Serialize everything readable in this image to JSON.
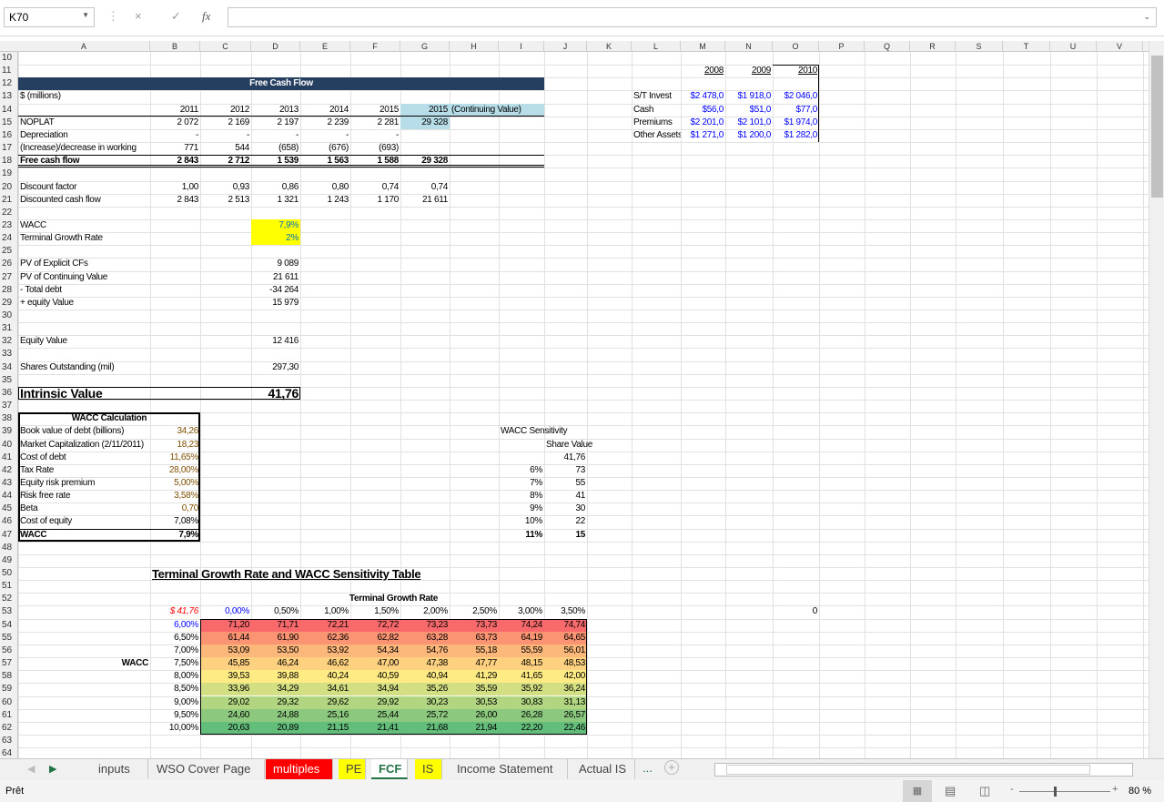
{
  "formula_bar": {
    "name_box": "K70",
    "cancel_icon": "×",
    "enter_icon": "✓",
    "fx_label": "fx",
    "value": ""
  },
  "columns": [
    "A",
    "B",
    "C",
    "D",
    "E",
    "F",
    "G",
    "H",
    "I",
    "J",
    "K",
    "L",
    "M",
    "N",
    "O",
    "P",
    "Q",
    "R",
    "S",
    "T",
    "U",
    "V"
  ],
  "first_row": 10,
  "last_row": 64,
  "cells": {
    "12": {
      "A": "Free Cash Flow"
    },
    "13": {
      "A": "$ (millions)"
    },
    "14": {
      "B": "2011",
      "C": "2012",
      "D": "2013",
      "E": "2014",
      "F": "2015",
      "G": "2015",
      "H": "(Continuing Value)"
    },
    "15": {
      "A": "NOPLAT",
      "B": "2 072",
      "C": "2 169",
      "D": "2 197",
      "E": "2 239",
      "F": "2 281",
      "G": "29 328"
    },
    "16": {
      "A": "Depreciation",
      "B": "-",
      "C": "-",
      "D": "-",
      "E": "-",
      "F": "-"
    },
    "17": {
      "A": "(Increase)/decrease in working",
      "B": "771",
      "C": "544",
      "D": "(658)",
      "E": "(676)",
      "F": "(693)"
    },
    "18": {
      "A": "Free cash flow",
      "B": "2 843",
      "C": "2 712",
      "D": "1 539",
      "E": "1 563",
      "F": "1 588",
      "G": "29 328"
    },
    "20": {
      "A": "Discount factor",
      "B": "1,00",
      "C": "0,93",
      "D": "0,86",
      "E": "0,80",
      "F": "0,74",
      "G": "0,74"
    },
    "21": {
      "A": "Discounted cash flow",
      "B": "2 843",
      "C": "2 513",
      "D": "1 321",
      "E": "1 243",
      "F": "1 170",
      "G": "21 611"
    },
    "23": {
      "A": "WACC",
      "D": "7,9%"
    },
    "24": {
      "A": "Terminal Growth Rate",
      "D": "2%"
    },
    "26": {
      "A": "PV of Explicit CFs",
      "D": "9 089"
    },
    "27": {
      "A": "PV of Continuing Value",
      "D": "21 611"
    },
    "28": {
      "A": "- Total debt",
      "D": "-34 264"
    },
    "29": {
      "A": "+ equity Value",
      "D": "15 979"
    },
    "32": {
      "A": "Equity Value",
      "D": "12 416"
    },
    "34": {
      "A": "Shares Outstanding (mil)",
      "D": "297,30"
    },
    "36": {
      "A": "Intrinsic Value",
      "D": "41,76"
    },
    "38": {
      "A": "WACC Calculation"
    },
    "39": {
      "A": "Book value of debt (billions)",
      "B": "34,26",
      "I": "WACC Sensitivity"
    },
    "40": {
      "A": "Market Capitalization (2/11/2011)",
      "B": "18,23",
      "J": "Share Value"
    },
    "41": {
      "A": "Cost of debt",
      "B": "11,65%",
      "J": "41,76"
    },
    "42": {
      "A": "Tax Rate",
      "B": "28,00%",
      "I": "6%",
      "J": "73"
    },
    "43": {
      "A": "Equity risk premium",
      "B": "5,00%",
      "I": "7%",
      "J": "55"
    },
    "44": {
      "A": "Risk free rate",
      "B": "3,58%",
      "I": "8%",
      "J": "41"
    },
    "45": {
      "A": "Beta",
      "B": "0,70",
      "I": "9%",
      "J": "30"
    },
    "46": {
      "A": "Cost of equity",
      "B": "7,08%",
      "I": "10%",
      "J": "22"
    },
    "47": {
      "A": "WACC",
      "B": "7,9%",
      "I": "11%",
      "J": "15"
    },
    "50": {
      "B": "Terminal Growth Rate and WACC Sensitivity Table"
    },
    "52": {
      "C": "Terminal Growth Rate"
    },
    "53": {
      "B": "$  41,76",
      "C": "0,00%",
      "D": "0,50%",
      "E": "1,00%",
      "F": "1,50%",
      "G": "2,00%",
      "H": "2,50%",
      "I": "3,00%",
      "J": "3,50%",
      "O": "0"
    },
    "54": {
      "B": "6,00%",
      "C": "71,20",
      "D": "71,71",
      "E": "72,21",
      "F": "72,72",
      "G": "73,23",
      "H": "73,73",
      "I": "74,24",
      "J": "74,74"
    },
    "55": {
      "B": "6,50%",
      "C": "61,44",
      "D": "61,90",
      "E": "62,36",
      "F": "62,82",
      "G": "63,28",
      "H": "63,73",
      "I": "64,19",
      "J": "64,65"
    },
    "56": {
      "B": "7,00%",
      "C": "53,09",
      "D": "53,50",
      "E": "53,92",
      "F": "54,34",
      "G": "54,76",
      "H": "55,18",
      "I": "55,59",
      "J": "56,01"
    },
    "57": {
      "A": "WACC",
      "B": "7,50%",
      "C": "45,85",
      "D": "46,24",
      "E": "46,62",
      "F": "47,00",
      "G": "47,38",
      "H": "47,77",
      "I": "48,15",
      "J": "48,53"
    },
    "58": {
      "B": "8,00%",
      "C": "39,53",
      "D": "39,88",
      "E": "40,24",
      "F": "40,59",
      "G": "40,94",
      "H": "41,29",
      "I": "41,65",
      "J": "42,00"
    },
    "59": {
      "B": "8,50%",
      "C": "33,96",
      "D": "34,29",
      "E": "34,61",
      "F": "34,94",
      "G": "35,26",
      "H": "35,59",
      "I": "35,92",
      "J": "36,24"
    },
    "60": {
      "B": "9,00%",
      "C": "29,02",
      "D": "29,32",
      "E": "29,62",
      "F": "29,92",
      "G": "30,23",
      "H": "30,53",
      "I": "30,83",
      "J": "31,13"
    },
    "61": {
      "B": "9,50%",
      "C": "24,60",
      "D": "24,88",
      "E": "25,16",
      "F": "25,44",
      "G": "25,72",
      "H": "26,00",
      "I": "26,28",
      "J": "26,57"
    },
    "62": {
      "B": "10,00%",
      "C": "20,63",
      "D": "20,89",
      "E": "21,15",
      "F": "21,41",
      "G": "21,68",
      "H": "21,94",
      "I": "22,20",
      "J": "22,46"
    },
    "11": {
      "M": "2008",
      "N": "2009",
      "O": "2010"
    }
  },
  "side_table": {
    "13": {
      "L": "S/T Invest",
      "M": "$2 478,0",
      "N": "$1 918,0",
      "O": "$2 046,0"
    },
    "14": {
      "L": "Cash",
      "M": "$56,0",
      "N": "$51,0",
      "O": "$77,0"
    },
    "15": {
      "L": "Premiums",
      "M": "$2 201,0",
      "N": "$2 101,0",
      "O": "$1 974,0"
    },
    "16": {
      "L": "Other Assets",
      "M": "$1 271,0",
      "N": "$1 200,0",
      "O": "$1 282,0"
    }
  },
  "colors": {
    "header_navy": "#243F60",
    "continuing_blue": "#B7DEE8",
    "input_yellow": "#FFFF00",
    "input_text_blue": "#0070C0",
    "heat": [
      "#F8696B",
      "#FA9473",
      "#FCB77A",
      "#FDD17F",
      "#FFEB84",
      "#D3DF82",
      "#B1D580",
      "#8CC97E",
      "#63BE7B"
    ]
  },
  "tabs": [
    {
      "label": "inputs",
      "color": ""
    },
    {
      "label": "WSO Cover Page",
      "color": ""
    },
    {
      "label": "multiples",
      "color": "#FF0000"
    },
    {
      "label": "PE",
      "color": "#FFFF00"
    },
    {
      "label": "FCF",
      "color": "",
      "active": true
    },
    {
      "label": "IS",
      "color": "#FFFF00"
    },
    {
      "label": "Income Statement",
      "color": ""
    },
    {
      "label": "Actual IS",
      "color": ""
    }
  ],
  "tabs_more": "...",
  "add_sheet_icon": "+",
  "status": {
    "ready": "Prêt",
    "zoom": "80 %"
  }
}
